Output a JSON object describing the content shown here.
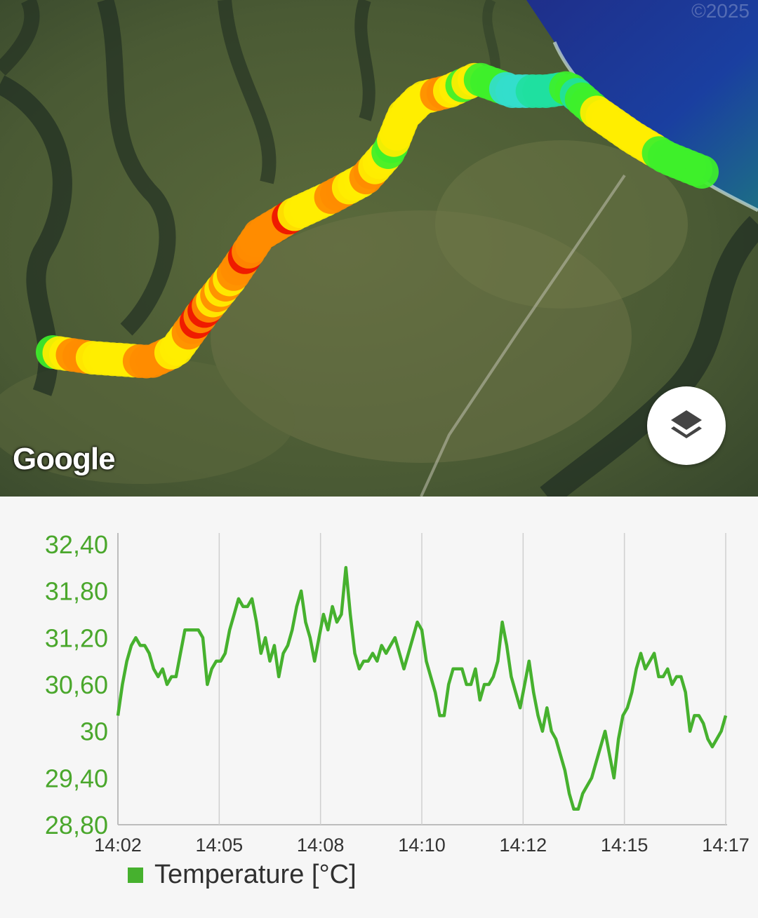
{
  "map": {
    "attribution": "Google",
    "copyright": "©2025",
    "layers_button_icon": "layers-icon",
    "route_colors": {
      "cool": "#20e0a0",
      "green": "#3ef02a",
      "yellow": "#ffee00",
      "orange": "#ff8c00",
      "red": "#ee1100",
      "cyan": "#33ddcc"
    }
  },
  "chart_data": {
    "type": "line",
    "title": "",
    "xlabel": "",
    "ylabel": "",
    "ylim": [
      28.8,
      32.4
    ],
    "y_ticks": [
      "32,40",
      "31,80",
      "31,20",
      "30,60",
      "30",
      "29,40",
      "28,80"
    ],
    "x_ticks": [
      "14:02",
      "14:05",
      "14:08",
      "14:10",
      "14:12",
      "14:15",
      "14:17"
    ],
    "grid": "vertical",
    "legend_position": "bottom-left",
    "line_color": "#46b12e",
    "series": [
      {
        "name": "Temperature [°C]",
        "values": [
          30.2,
          30.6,
          30.9,
          31.1,
          31.2,
          31.1,
          31.1,
          31.0,
          30.8,
          30.7,
          30.8,
          30.6,
          30.7,
          30.7,
          31.0,
          31.3,
          31.3,
          31.3,
          31.3,
          31.2,
          30.6,
          30.8,
          30.9,
          30.9,
          31.0,
          31.3,
          31.5,
          31.7,
          31.6,
          31.6,
          31.7,
          31.4,
          31.0,
          31.2,
          30.9,
          31.1,
          30.7,
          31.0,
          31.1,
          31.3,
          31.6,
          31.8,
          31.4,
          31.2,
          30.9,
          31.2,
          31.5,
          31.3,
          31.6,
          31.4,
          31.5,
          32.1,
          31.5,
          31.0,
          30.8,
          30.9,
          30.9,
          31.0,
          30.9,
          31.1,
          31.0,
          31.1,
          31.2,
          31.0,
          30.8,
          31.0,
          31.2,
          31.4,
          31.3,
          30.9,
          30.7,
          30.5,
          30.2,
          30.2,
          30.6,
          30.8,
          30.8,
          30.8,
          30.6,
          30.6,
          30.8,
          30.4,
          30.6,
          30.6,
          30.7,
          30.9,
          31.4,
          31.1,
          30.7,
          30.5,
          30.3,
          30.6,
          30.9,
          30.5,
          30.2,
          30.0,
          30.3,
          30.0,
          29.9,
          29.7,
          29.5,
          29.2,
          29.0,
          29.0,
          29.2,
          29.3,
          29.4,
          29.6,
          29.8,
          30.0,
          29.7,
          29.4,
          29.9,
          30.2,
          30.3,
          30.5,
          30.8,
          31.0,
          30.8,
          30.9,
          31.0,
          30.7,
          30.7,
          30.8,
          30.6,
          30.7,
          30.7,
          30.5,
          30.0,
          30.2,
          30.2,
          30.1,
          29.9,
          29.8,
          29.9,
          30.0,
          30.2
        ]
      }
    ]
  }
}
